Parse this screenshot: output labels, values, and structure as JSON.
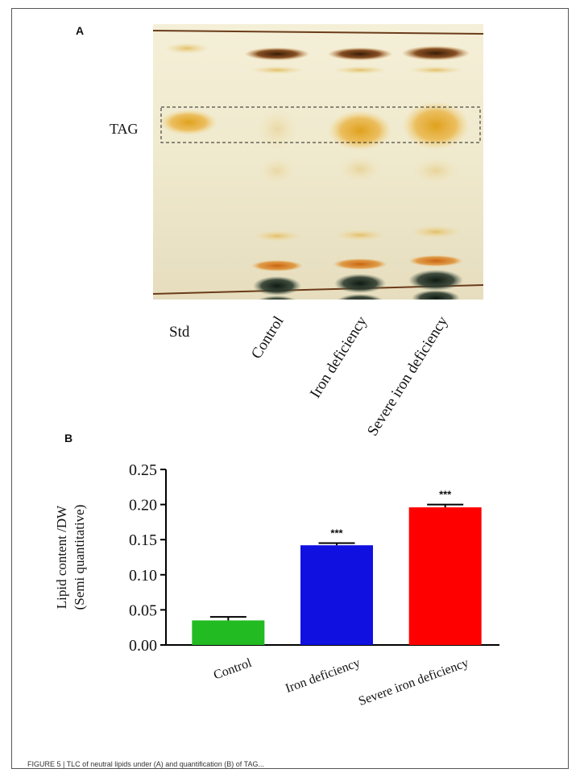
{
  "panel_a": {
    "letter": "A",
    "band_label": "TAG",
    "lanes": [
      "Std",
      "Control",
      "Iron deficiency",
      "Severe iron deficiency"
    ]
  },
  "panel_b": {
    "letter": "B"
  },
  "chart_data": {
    "type": "bar",
    "title": "",
    "ylabel_line1": "Lipid content /DW",
    "ylabel_line2": "(Semi quantitative)",
    "xlabel": "",
    "categories": [
      "Control",
      "Iron deficiency",
      "Severe iron deficiency"
    ],
    "values": [
      0.035,
      0.142,
      0.196
    ],
    "errors": [
      0.005,
      0.003,
      0.004
    ],
    "significance": [
      "",
      "***",
      "***"
    ],
    "colors": [
      "#22bb22",
      "#1010e0",
      "#ff0000"
    ],
    "ylim": [
      0,
      0.25
    ],
    "yticks": [
      "0.00",
      "0.05",
      "0.10",
      "0.15",
      "0.20",
      "0.25"
    ],
    "grid": false
  },
  "caption": "FIGURE 5 | TLC of neutral lipids under (A) and quantification (B) of TAG..."
}
